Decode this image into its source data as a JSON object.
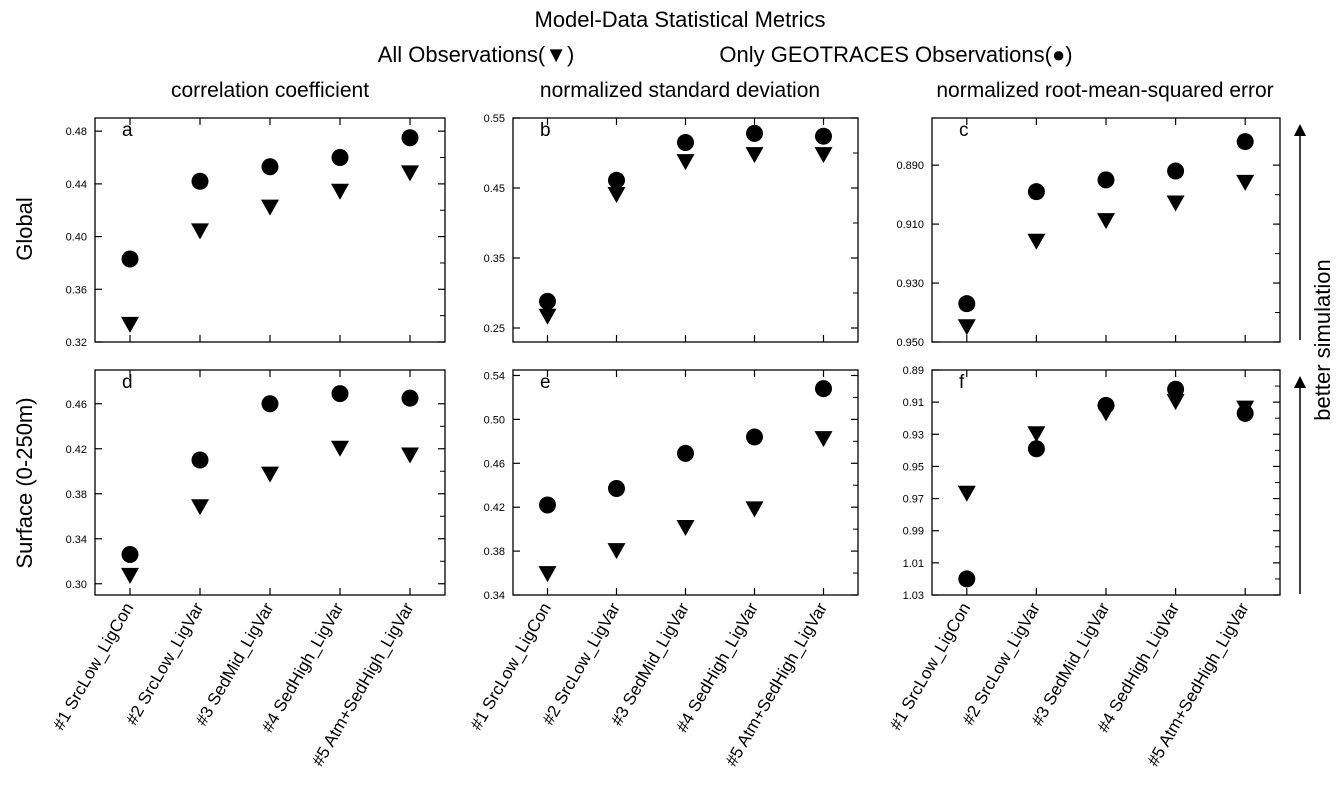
{
  "figure": {
    "title": "Model-Data Statistical Metrics",
    "legend_all": "All Observations(▼)",
    "legend_geo": "Only GEOTRACES Observations(●)",
    "better_label": "better simulation"
  },
  "column_titles": [
    "correlation coefficient",
    "normalized standard deviation",
    "normalized root-mean-squared error"
  ],
  "row_labels": [
    "Global",
    "Surface (0-250m)"
  ],
  "categories": [
    "#1 SrcLow_LigCon",
    "#2 SrcLow_LigVar",
    "#3 SedMid_LigVar",
    "#4 SedHigh_LigVar",
    "#5 Atm+SedHigh_LigVar"
  ],
  "chart_data": [
    {
      "type": "scatter",
      "panel": "a",
      "ylabel": "correlation coefficient",
      "row": "Global",
      "ylim": [
        0.32,
        0.49
      ],
      "inverted": false,
      "yticks": [
        0.32,
        0.36,
        0.4,
        0.44,
        0.48
      ],
      "ytick_labels": [
        "0.32",
        "0.36",
        "0.40",
        "0.44",
        "0.48"
      ],
      "categories": [
        "#1 SrcLow_LigCon",
        "#2 SrcLow_LigVar",
        "#3 SedMid_LigVar",
        "#4 SedHigh_LigVar",
        "#5 Atm+SedHigh_LigVar"
      ],
      "series": [
        {
          "marker": "triangle",
          "values": [
            0.333,
            0.404,
            0.422,
            0.434,
            0.448
          ]
        },
        {
          "marker": "circle",
          "values": [
            0.383,
            0.442,
            0.453,
            0.46,
            0.475
          ]
        }
      ]
    },
    {
      "type": "scatter",
      "panel": "b",
      "ylabel": "normalized standard deviation",
      "row": "Global",
      "ylim": [
        0.23,
        0.55
      ],
      "inverted": false,
      "yticks": [
        0.25,
        0.35,
        0.45,
        0.55
      ],
      "ytick_labels": [
        "0.25",
        "0.35",
        "0.45",
        "0.55"
      ],
      "categories": [
        "#1 SrcLow_LigCon",
        "#2 SrcLow_LigVar",
        "#3 SedMid_LigVar",
        "#4 SedHigh_LigVar",
        "#5 Atm+SedHigh_LigVar"
      ],
      "series": [
        {
          "marker": "triangle",
          "values": [
            0.266,
            0.44,
            0.487,
            0.497,
            0.497
          ]
        },
        {
          "marker": "circle",
          "values": [
            0.288,
            0.461,
            0.515,
            0.528,
            0.524
          ]
        }
      ]
    },
    {
      "type": "scatter",
      "panel": "c",
      "ylabel": "normalized root-mean-squared error",
      "row": "Global",
      "ylim": [
        0.95,
        0.874
      ],
      "inverted": true,
      "yticks": [
        0.89,
        0.91,
        0.93,
        0.95
      ],
      "ytick_labels": [
        "0.890",
        "0.910",
        "0.930",
        "0.950"
      ],
      "categories": [
        "#1 SrcLow_LigCon",
        "#2 SrcLow_LigVar",
        "#3 SedMid_LigVar",
        "#4 SedHigh_LigVar",
        "#5 Atm+SedHigh_LigVar"
      ],
      "series": [
        {
          "marker": "triangle",
          "values": [
            0.945,
            0.916,
            0.909,
            0.903,
            0.896
          ]
        },
        {
          "marker": "circle",
          "values": [
            0.937,
            0.899,
            0.895,
            0.892,
            0.882
          ]
        }
      ]
    },
    {
      "type": "scatter",
      "panel": "d",
      "ylabel": "correlation coefficient",
      "row": "Surface (0-250m)",
      "ylim": [
        0.29,
        0.49
      ],
      "inverted": false,
      "yticks": [
        0.3,
        0.34,
        0.38,
        0.42,
        0.46
      ],
      "ytick_labels": [
        "0.30",
        "0.34",
        "0.38",
        "0.42",
        "0.46"
      ],
      "categories": [
        "#1 SrcLow_LigCon",
        "#2 SrcLow_LigVar",
        "#3 SedMid_LigVar",
        "#4 SedHigh_LigVar",
        "#5 Atm+SedHigh_LigVar"
      ],
      "series": [
        {
          "marker": "triangle",
          "values": [
            0.307,
            0.368,
            0.397,
            0.42,
            0.414
          ]
        },
        {
          "marker": "circle",
          "values": [
            0.326,
            0.41,
            0.46,
            0.469,
            0.465
          ]
        }
      ]
    },
    {
      "type": "scatter",
      "panel": "e",
      "ylabel": "normalized standard deviation",
      "row": "Surface (0-250m)",
      "ylim": [
        0.34,
        0.545
      ],
      "inverted": false,
      "yticks": [
        0.34,
        0.38,
        0.42,
        0.46,
        0.5,
        0.54
      ],
      "ytick_labels": [
        "0.34",
        "0.38",
        "0.42",
        "0.46",
        "0.50",
        "0.54"
      ],
      "categories": [
        "#1 SrcLow_LigCon",
        "#2 SrcLow_LigVar",
        "#3 SedMid_LigVar",
        "#4 SedHigh_LigVar",
        "#5 Atm+SedHigh_LigVar"
      ],
      "series": [
        {
          "marker": "triangle",
          "values": [
            0.359,
            0.38,
            0.401,
            0.418,
            0.482
          ]
        },
        {
          "marker": "circle",
          "values": [
            0.422,
            0.437,
            0.469,
            0.484,
            0.528
          ]
        }
      ]
    },
    {
      "type": "scatter",
      "panel": "f",
      "ylabel": "normalized root-mean-squared error",
      "row": "Surface (0-250m)",
      "ylim": [
        1.03,
        0.89
      ],
      "inverted": true,
      "yticks": [
        0.89,
        0.91,
        0.93,
        0.95,
        0.97,
        0.99,
        1.01,
        1.03
      ],
      "ytick_labels": [
        "0.89",
        "0.91",
        "0.93",
        "0.95",
        "0.97",
        "0.99",
        "1.01",
        "1.03"
      ],
      "categories": [
        "#1 SrcLow_LigCon",
        "#2 SrcLow_LigVar",
        "#3 SedMid_LigVar",
        "#4 SedHigh_LigVar",
        "#5 Atm+SedHigh_LigVar"
      ],
      "series": [
        {
          "marker": "triangle",
          "values": [
            0.967,
            0.93,
            0.917,
            0.91,
            0.914
          ]
        },
        {
          "marker": "circle",
          "values": [
            1.02,
            0.939,
            0.912,
            0.902,
            0.917
          ]
        }
      ]
    }
  ]
}
